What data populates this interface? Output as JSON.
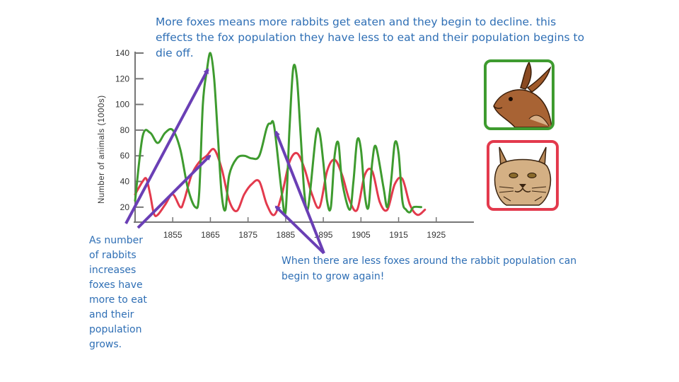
{
  "notes": {
    "top": "More foxes means more rabbits get eaten and they begin to decline. this effects the fox population they have less to eat and their population begins to die off.",
    "left": "As number of rabbits increases foxes have more to eat and their population grows.",
    "bottom": "When there are less foxes around the rabbit population can begin to grow again!"
  },
  "images": {
    "rabbit": "rabbit-head-picture",
    "fox": "wildcat-head-picture"
  },
  "colors": {
    "rabbit_series": "#3e9b2f",
    "fox_series": "#e33a4d",
    "arrows": "#6a3fb5",
    "text": "#2f6fb5"
  },
  "chart_data": {
    "type": "line",
    "title": "",
    "xlabel": "",
    "ylabel": "Number of animals (1000s)",
    "xlim": [
      1845,
      1935
    ],
    "ylim": [
      10,
      140
    ],
    "yticks": [
      20,
      40,
      60,
      80,
      100,
      120,
      140
    ],
    "xticks": [
      1855,
      1865,
      1875,
      1885,
      1895,
      1905,
      1915,
      1925
    ],
    "grid": false,
    "legend": "none",
    "series": [
      {
        "color": "#3e9b2f",
        "x": [
          1845,
          1847,
          1849,
          1851,
          1853,
          1855,
          1857,
          1859,
          1861,
          1862,
          1863,
          1864,
          1865,
          1866,
          1867,
          1868,
          1869,
          1870,
          1872,
          1874,
          1876,
          1878,
          1880,
          1881,
          1882,
          1884,
          1885,
          1886,
          1887,
          1888,
          1889,
          1890,
          1891,
          1893,
          1894,
          1895,
          1896,
          1897,
          1898,
          1899,
          1900,
          1902,
          1903,
          1904,
          1905,
          1906,
          1907,
          1908,
          1909,
          1911,
          1912,
          1913,
          1914,
          1915,
          1916,
          1917,
          1918,
          1919,
          1921
        ],
        "y": [
          25,
          75,
          78,
          70,
          78,
          80,
          65,
          35,
          20,
          30,
          100,
          125,
          140,
          120,
          75,
          30,
          18,
          45,
          58,
          60,
          58,
          60,
          82,
          85,
          82,
          30,
          17,
          80,
          128,
          120,
          75,
          30,
          20,
          75,
          78,
          55,
          25,
          20,
          60,
          70,
          40,
          18,
          40,
          72,
          65,
          30,
          20,
          55,
          67,
          35,
          20,
          40,
          70,
          62,
          25,
          18,
          16,
          20,
          20
        ]
      },
      {
        "color": "#e33a4d",
        "x": [
          1845,
          1847,
          1848,
          1849,
          1850,
          1851,
          1853,
          1855,
          1857,
          1858,
          1860,
          1862,
          1864,
          1866,
          1868,
          1870,
          1872,
          1874,
          1876,
          1878,
          1880,
          1882,
          1884,
          1886,
          1888,
          1890,
          1892,
          1894,
          1896,
          1898,
          1900,
          1902,
          1904,
          1906,
          1908,
          1910,
          1912,
          1914,
          1916,
          1918,
          1920,
          1922
        ],
        "y": [
          30,
          40,
          42,
          30,
          15,
          14,
          22,
          30,
          20,
          25,
          45,
          55,
          60,
          65,
          50,
          25,
          17,
          30,
          38,
          40,
          22,
          14,
          30,
          55,
          62,
          50,
          30,
          20,
          48,
          57,
          45,
          25,
          18,
          45,
          48,
          24,
          18,
          38,
          42,
          22,
          14,
          18
        ]
      }
    ]
  }
}
